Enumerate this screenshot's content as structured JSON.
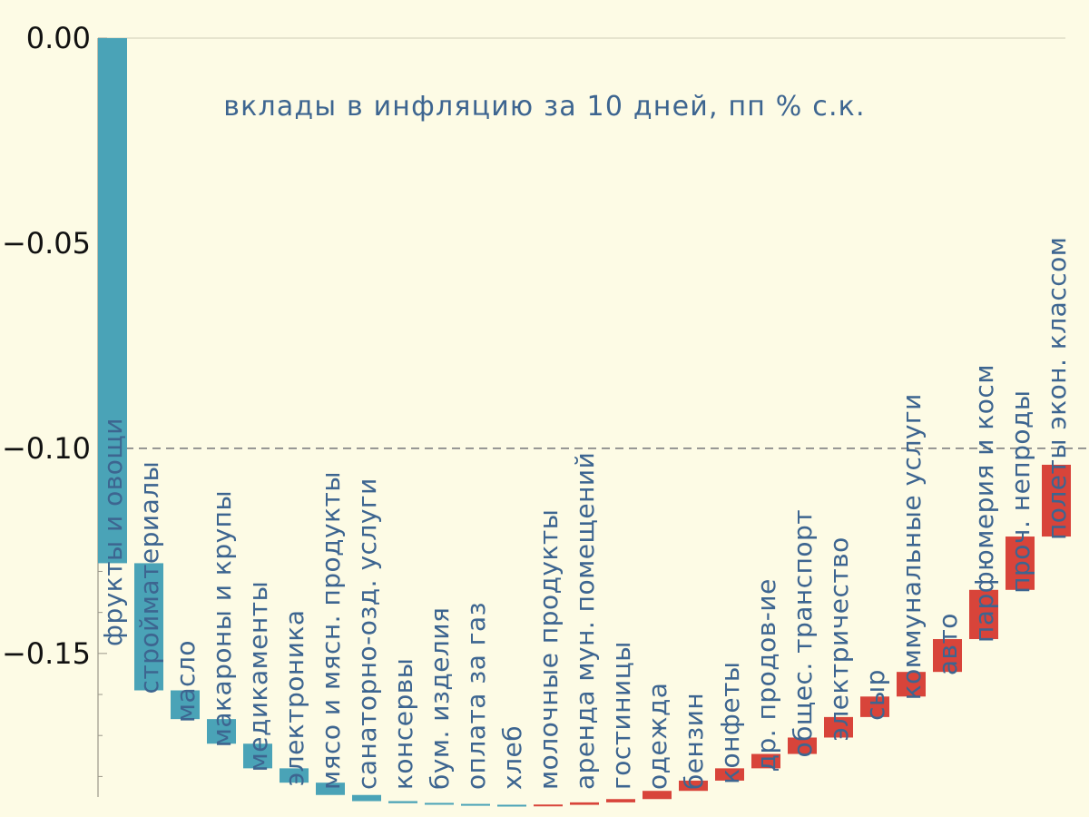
{
  "colors": {
    "background": "#fdfbe5",
    "negative": "#4aa3b7",
    "positive": "#d8443a",
    "label": "#3d6590",
    "reference_line": "#888888",
    "axis": "#b0ad9c"
  },
  "chart_data": {
    "type": "bar",
    "subtype": "waterfall",
    "title": "вклады в инфляцию за 10 дней, пп % с.к.",
    "xlabel": "",
    "ylabel": "",
    "ylim": [
      -0.185,
      0.0
    ],
    "yticks": [
      0.0,
      -0.05,
      -0.1,
      -0.15
    ],
    "ytick_labels": [
      "0.00",
      "−0.05",
      "−0.10",
      "−0.15"
    ],
    "reference_line": -0.1,
    "grid": false,
    "legend": "none",
    "categories": [
      "фрукты и овощи",
      "стройматериалы",
      "масло",
      "макароны и крупы",
      "медикаменты",
      "электроника",
      "мясо и мясн. продукты",
      "санаторно-озд. услуги",
      "консервы",
      "бум. изделия",
      "оплата за газ",
      "хлеб",
      "молочные продукты",
      "аренда мун. помещений",
      "гостиницы",
      "одежда",
      "бензин",
      "конфеты",
      "др. продов-ие",
      "общес. транспорт",
      "электричество",
      "сыр",
      "коммунальные услуги",
      "авто",
      "парфюмерия и косм",
      "проч. непроды",
      "полеты экон. классом"
    ],
    "values": [
      -0.128,
      -0.031,
      -0.007,
      -0.006,
      -0.006,
      -0.0035,
      -0.003,
      -0.0015,
      -0.0005,
      -0.0003,
      -0.0002,
      -0.0002,
      0.0003,
      0.0006,
      0.0008,
      0.002,
      0.0025,
      0.003,
      0.0035,
      0.004,
      0.005,
      0.005,
      0.006,
      0.008,
      0.012,
      0.013,
      0.0175
    ],
    "cumulative_end": [
      -0.128,
      -0.159,
      -0.166,
      -0.172,
      -0.178,
      -0.1815,
      -0.1845,
      -0.186,
      -0.1865,
      -0.1868,
      -0.187,
      -0.1872,
      -0.1869,
      -0.1863,
      -0.1855,
      -0.1835,
      -0.181,
      -0.178,
      -0.1745,
      -0.1705,
      -0.1655,
      -0.1605,
      -0.1545,
      -0.1465,
      -0.1345,
      -0.1215,
      -0.104
    ]
  }
}
